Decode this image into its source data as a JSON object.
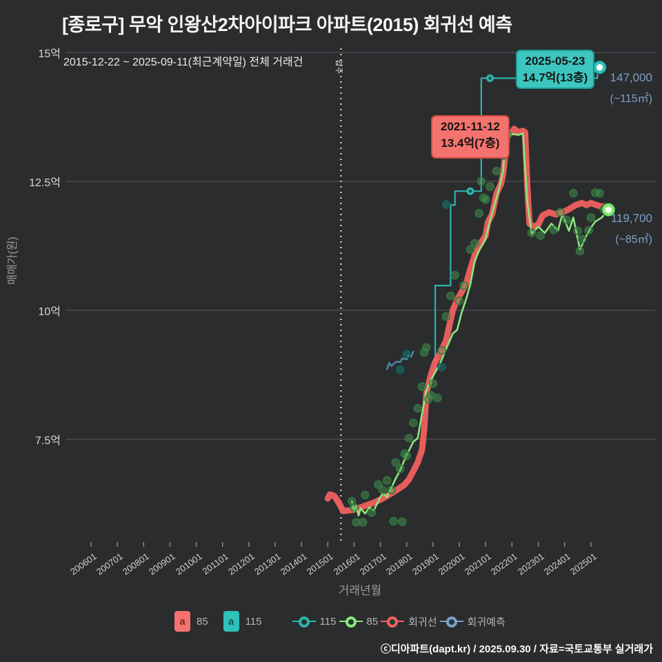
{
  "header": {
    "title": "[종로구] 무악 인왕산2차아이파크 아파트(2015) 회귀선 예측",
    "subtitle": "2015-12-22 ~ 2025-09-11(최근계약일) 전체 거래건"
  },
  "y_axis": {
    "title": "매매가(원)",
    "ticks": [
      {
        "label": "15억",
        "value": 15
      },
      {
        "label": "12.5억",
        "value": 12.5
      },
      {
        "label": "10억",
        "value": 10
      },
      {
        "label": "7.5억",
        "value": 7.5
      }
    ]
  },
  "x_axis": {
    "title": "거래년월",
    "tick_labels": [
      "200601",
      "200701",
      "200801",
      "200901",
      "201001",
      "201101",
      "201201",
      "201301",
      "201401",
      "201501",
      "201601",
      "201701",
      "201801",
      "201901",
      "202001",
      "202101",
      "202201",
      "202301",
      "202401",
      "202501"
    ]
  },
  "move_in": {
    "label": "입주",
    "date": "2015-07"
  },
  "annotations": {
    "latest115": {
      "line1": "2025-05-23",
      "line2": "14.7억(13층)"
    },
    "peak85": {
      "line1": "2021-11-12",
      "line2": "13.4억(7층)"
    },
    "price115": {
      "value": "147,000",
      "area": "(~115㎡)"
    },
    "price85": {
      "value": "119,700",
      "area": "(~85㎡)"
    }
  },
  "legend": {
    "box85": "85",
    "box115": "115",
    "dot115": "115",
    "dot85": "85",
    "regression": "회귀선",
    "prediction": "회귀예측"
  },
  "footer": {
    "credit": "ⓒ디아파트(dapt.kr) / 2025.09.30 / 자료=국토교통부 실거래가"
  },
  "colors": {
    "bg": "#2b2c2e",
    "grid": "#505154",
    "red": "#f3625f",
    "green": "#8de67d",
    "teal": "#2fb3ac",
    "blue": "#4d86a0",
    "steel": "#7da0c6",
    "scatter_green_fill": "rgba(80,165,90,0.42)",
    "scatter_green_stroke": "rgba(45,120,60,0.95)",
    "scatter_teal_fill": "rgba(25,125,120,0.5)",
    "scatter_teal_stroke": "rgba(15,95,92,0.95)"
  },
  "chart_data": {
    "type": "line",
    "title": "[종로구] 무악 인왕산2차아이파크 아파트(2015) 회귀선 예측",
    "xlabel": "거래년월",
    "ylabel": "매매가(원)",
    "y_unit": "억원",
    "ylim": [
      5.5,
      15.3
    ],
    "x_range": [
      "2006-01",
      "2025-09"
    ],
    "grid_values": [
      15,
      12.5,
      10,
      7.5
    ],
    "series": [
      {
        "name": "회귀선",
        "color_key": "red",
        "style": "thick",
        "points": [
          [
            "2015-01",
            6.35
          ],
          [
            "2015-02",
            6.43
          ],
          [
            "2015-04",
            6.4
          ],
          [
            "2015-06",
            6.27
          ],
          [
            "2015-08",
            6.11
          ],
          [
            "2015-11",
            6.12
          ],
          [
            "2016-02",
            6.15
          ],
          [
            "2016-06",
            6.21
          ],
          [
            "2016-10",
            6.27
          ],
          [
            "2017-02",
            6.35
          ],
          [
            "2017-06",
            6.45
          ],
          [
            "2017-10",
            6.56
          ],
          [
            "2017-12",
            6.62
          ],
          [
            "2018-02",
            6.72
          ],
          [
            "2018-04",
            6.88
          ],
          [
            "2018-06",
            7.05
          ],
          [
            "2018-08",
            7.3
          ],
          [
            "2018-09",
            7.7
          ],
          [
            "2018-10",
            8.4
          ],
          [
            "2018-12",
            8.75
          ],
          [
            "2019-02",
            9.0
          ],
          [
            "2019-04",
            9.15
          ],
          [
            "2019-07",
            9.42
          ],
          [
            "2019-10",
            10.0
          ],
          [
            "2019-12",
            10.2
          ],
          [
            "2020-02",
            10.35
          ],
          [
            "2020-04",
            10.5
          ],
          [
            "2020-06",
            10.8
          ],
          [
            "2020-08",
            11.07
          ],
          [
            "2020-10",
            11.25
          ],
          [
            "2021-01",
            11.45
          ],
          [
            "2021-02",
            11.7
          ],
          [
            "2021-04",
            11.87
          ],
          [
            "2021-05",
            12.07
          ],
          [
            "2021-06",
            12.27
          ],
          [
            "2021-08",
            12.45
          ],
          [
            "2021-09",
            12.65
          ],
          [
            "2021-10",
            13.05
          ],
          [
            "2021-11",
            13.4
          ],
          [
            "2022-01",
            13.45
          ],
          [
            "2022-02",
            13.52
          ],
          [
            "2022-04",
            13.45
          ],
          [
            "2022-06",
            13.48
          ],
          [
            "2022-07",
            13.45
          ],
          [
            "2022-08",
            12.4
          ],
          [
            "2022-09",
            11.68
          ],
          [
            "2022-11",
            11.62
          ],
          [
            "2023-01",
            11.66
          ],
          [
            "2023-03",
            11.84
          ],
          [
            "2023-06",
            11.9
          ],
          [
            "2023-09",
            11.86
          ],
          [
            "2023-12",
            11.9
          ],
          [
            "2024-03",
            11.96
          ],
          [
            "2024-06",
            12.04
          ],
          [
            "2024-09",
            12.08
          ],
          [
            "2024-11",
            12.04
          ],
          [
            "2025-01",
            12.08
          ],
          [
            "2025-03",
            12.05
          ],
          [
            "2025-06",
            12.01
          ],
          [
            "2025-08",
            12.02
          ]
        ]
      },
      {
        "name": "85",
        "color_key": "green",
        "style": "thin",
        "points": [
          [
            "2015-12",
            6.3
          ],
          [
            "2016-01",
            6.1
          ],
          [
            "2016-02",
            6.22
          ],
          [
            "2016-03",
            6.02
          ],
          [
            "2016-04",
            6.16
          ],
          [
            "2016-06",
            6.06
          ],
          [
            "2016-08",
            6.18
          ],
          [
            "2016-10",
            6.12
          ],
          [
            "2016-12",
            6.3
          ],
          [
            "2017-02",
            6.45
          ],
          [
            "2017-04",
            6.38
          ],
          [
            "2017-06",
            6.56
          ],
          [
            "2017-08",
            6.74
          ],
          [
            "2017-10",
            6.9
          ],
          [
            "2017-12",
            7.1
          ],
          [
            "2018-02",
            7.28
          ],
          [
            "2018-04",
            7.45
          ],
          [
            "2018-06",
            7.52
          ],
          [
            "2018-08",
            8.0
          ],
          [
            "2018-10",
            8.45
          ],
          [
            "2018-12",
            8.65
          ],
          [
            "2019-02",
            8.8
          ],
          [
            "2019-04",
            8.95
          ],
          [
            "2019-06",
            9.15
          ],
          [
            "2019-08",
            9.35
          ],
          [
            "2019-10",
            9.55
          ],
          [
            "2019-12",
            9.62
          ],
          [
            "2020-02",
            9.95
          ],
          [
            "2020-04",
            10.2
          ],
          [
            "2020-06",
            10.5
          ],
          [
            "2020-08",
            10.95
          ],
          [
            "2020-10",
            11.16
          ],
          [
            "2020-12",
            11.3
          ],
          [
            "2021-01",
            11.4
          ],
          [
            "2021-03",
            11.74
          ],
          [
            "2021-05",
            12.04
          ],
          [
            "2021-07",
            12.34
          ],
          [
            "2021-09",
            12.7
          ],
          [
            "2021-10",
            13.38
          ],
          [
            "2022-01",
            13.42
          ],
          [
            "2022-04",
            13.4
          ],
          [
            "2022-06",
            13.43
          ],
          [
            "2022-08",
            12.1
          ],
          [
            "2022-10",
            11.48
          ],
          [
            "2023-01",
            11.62
          ],
          [
            "2023-04",
            11.5
          ],
          [
            "2023-07",
            11.68
          ],
          [
            "2023-10",
            11.55
          ],
          [
            "2023-12",
            11.86
          ],
          [
            "2024-03",
            11.54
          ],
          [
            "2024-05",
            11.8
          ],
          [
            "2024-08",
            11.18
          ],
          [
            "2024-11",
            11.45
          ],
          [
            "2025-01",
            11.6
          ],
          [
            "2025-03",
            11.72
          ],
          [
            "2025-06",
            11.8
          ],
          [
            "2025-09",
            11.95
          ]
        ]
      },
      {
        "name": "115",
        "color_key": "teal",
        "style": "step",
        "points": [
          [
            "2019-02",
            8.89
          ],
          [
            "2019-02",
            10.48
          ],
          [
            "2019-09",
            10.48
          ],
          [
            "2019-09",
            12.04
          ],
          [
            "2019-11",
            12.04
          ],
          [
            "2019-11",
            12.31
          ],
          [
            "2020-11",
            12.31
          ],
          [
            "2020-11",
            14.5
          ],
          [
            "2025-04",
            14.5
          ],
          [
            "2025-04",
            14.71
          ],
          [
            "2025-05",
            14.71
          ]
        ],
        "markers": [
          [
            "2020-06",
            12.31
          ],
          [
            "2021-03",
            14.5
          ]
        ]
      },
      {
        "name": "회귀예측",
        "color_key": "blue",
        "style": "thin",
        "points": [
          [
            "2017-04",
            8.86
          ],
          [
            "2017-05",
            8.98
          ],
          [
            "2017-06",
            8.92
          ],
          [
            "2017-08",
            9.0
          ],
          [
            "2017-10",
            9.0
          ],
          [
            "2017-11",
            9.07
          ],
          [
            "2018-01",
            9.05
          ],
          [
            "2018-02",
            9.13
          ],
          [
            "2018-03",
            9.1
          ],
          [
            "2018-04",
            9.2
          ]
        ]
      }
    ],
    "scatter": [
      {
        "name": "85",
        "color_key": "green",
        "points": [
          [
            "2015-12",
            6.3
          ],
          [
            "2016-01",
            6.18
          ],
          [
            "2016-02",
            5.89
          ],
          [
            "2016-05",
            5.89
          ],
          [
            "2016-06",
            6.42
          ],
          [
            "2016-09",
            6.08
          ],
          [
            "2016-12",
            6.62
          ],
          [
            "2017-02",
            6.52
          ],
          [
            "2017-04",
            6.7
          ],
          [
            "2017-06",
            6.52
          ],
          [
            "2017-07",
            5.91
          ],
          [
            "2017-08",
            7.05
          ],
          [
            "2017-10",
            6.93
          ],
          [
            "2017-11",
            5.9
          ],
          [
            "2017-12",
            7.22
          ],
          [
            "2018-01",
            7.18
          ],
          [
            "2018-02",
            7.52
          ],
          [
            "2018-04",
            7.82
          ],
          [
            "2018-06",
            8.1
          ],
          [
            "2018-08",
            8.52
          ],
          [
            "2018-09",
            9.18
          ],
          [
            "2018-10",
            9.28
          ],
          [
            "2018-11",
            8.28
          ],
          [
            "2018-12",
            8.35
          ],
          [
            "2019-01",
            8.58
          ],
          [
            "2019-03",
            8.3
          ],
          [
            "2019-05",
            9.22
          ],
          [
            "2019-07",
            9.88
          ],
          [
            "2019-09",
            10.28
          ],
          [
            "2019-11",
            10.68
          ],
          [
            "2020-01",
            10.18
          ],
          [
            "2020-03",
            10.48
          ],
          [
            "2020-06",
            11.18
          ],
          [
            "2020-08",
            11.3
          ],
          [
            "2020-10",
            11.88
          ],
          [
            "2020-11",
            12.5
          ],
          [
            "2020-12",
            12.18
          ],
          [
            "2021-01",
            12.15
          ],
          [
            "2021-03",
            12.4
          ],
          [
            "2021-06",
            12.7
          ],
          [
            "2021-09",
            13.0
          ],
          [
            "2021-11",
            13.4
          ],
          [
            "2022-10",
            11.5
          ],
          [
            "2023-02",
            11.45
          ],
          [
            "2023-08",
            11.56
          ],
          [
            "2023-11",
            11.9
          ],
          [
            "2024-02",
            11.75
          ],
          [
            "2024-05",
            12.27
          ],
          [
            "2024-07",
            11.54
          ],
          [
            "2024-08",
            11.15
          ],
          [
            "2024-09",
            11.38
          ],
          [
            "2024-12",
            11.55
          ],
          [
            "2025-01",
            11.8
          ],
          [
            "2025-03",
            12.28
          ],
          [
            "2025-05",
            12.27
          ],
          [
            "2025-07",
            11.95
          ]
        ]
      },
      {
        "name": "115",
        "color_key": "teal",
        "points": [
          [
            "2017-10",
            8.85
          ],
          [
            "2018-01",
            9.15
          ],
          [
            "2019-05",
            8.9
          ],
          [
            "2019-07",
            12.05
          ]
        ]
      }
    ],
    "end_markers": [
      {
        "series": "115",
        "point": [
          "2025-05",
          14.71
        ],
        "label": "147,000",
        "area": "(~115㎡)"
      },
      {
        "series": "85",
        "point": [
          "2025-09",
          11.95
        ],
        "label": "119,700",
        "area": "(~85㎡)"
      }
    ],
    "annotated_points": [
      {
        "date": "2021-11-12",
        "value_label": "13.4억(7층)",
        "series": "회귀선",
        "point": [
          "2021-11",
          13.4
        ]
      },
      {
        "date": "2025-05-23",
        "value_label": "14.7억(13층)",
        "series": "115",
        "point": [
          "2025-05",
          14.71
        ]
      }
    ]
  }
}
